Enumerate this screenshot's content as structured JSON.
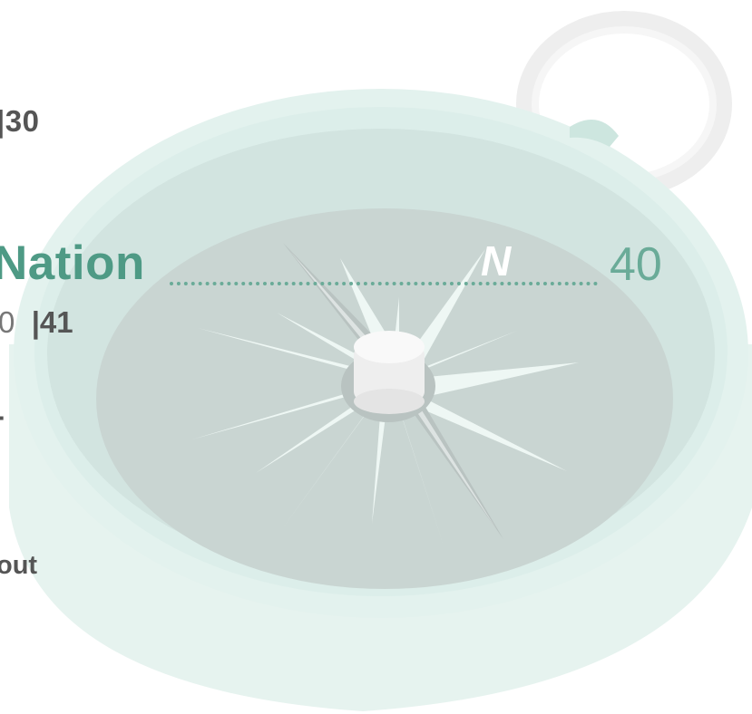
{
  "toc": {
    "entry_top": "|30",
    "entry_main_title": "Nation",
    "entry_main_page": "40",
    "entry_sub_prefix": "0",
    "entry_sub_page": "|41",
    "entry_mid": "-",
    "entry_bottom": "out"
  },
  "colors": {
    "accent": "#4e9a85",
    "text": "#555555",
    "compass_rim": "#e3f2ee",
    "compass_face": "#c9d5d2"
  },
  "illustration": {
    "compass_north_label": "N"
  }
}
